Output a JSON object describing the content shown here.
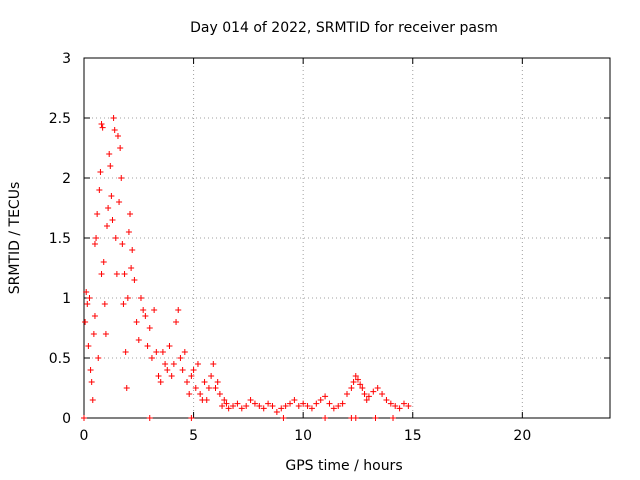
{
  "chart_data": {
    "type": "scatter",
    "title": "Day 014 of 2022, SRMTID for receiver pasm",
    "xlabel": "GPS time / hours",
    "ylabel": "SRMTID / TECUs",
    "xlim": [
      0,
      24
    ],
    "ylim": [
      0,
      3
    ],
    "xticks": [
      0,
      5,
      10,
      15,
      20
    ],
    "yticks": [
      0,
      0.5,
      1,
      1.5,
      2,
      2.5,
      3
    ],
    "xtick_labels": [
      "0",
      "5",
      "10",
      "15",
      "20"
    ],
    "ytick_labels": [
      "0",
      "0.5",
      "1",
      "1.5",
      "2",
      "2.5",
      "3"
    ],
    "grid": true,
    "marker": "plus",
    "color": "#ff0000",
    "series": [
      {
        "name": "SRMTID",
        "points": [
          [
            0.05,
            0.8
          ],
          [
            0.1,
            1.05
          ],
          [
            0.15,
            0.95
          ],
          [
            0.2,
            0.6
          ],
          [
            0.25,
            1.0
          ],
          [
            0.3,
            0.4
          ],
          [
            0.35,
            0.3
          ],
          [
            0.4,
            0.15
          ],
          [
            0.45,
            0.7
          ],
          [
            0.5,
            0.85
          ],
          [
            0.5,
            1.45
          ],
          [
            0.55,
            1.5
          ],
          [
            0.6,
            1.7
          ],
          [
            0.65,
            0.5
          ],
          [
            0.7,
            1.9
          ],
          [
            0.75,
            2.05
          ],
          [
            0.8,
            1.2
          ],
          [
            0.8,
            2.45
          ],
          [
            0.85,
            2.42
          ],
          [
            0.9,
            1.3
          ],
          [
            0.95,
            0.95
          ],
          [
            1.0,
            0.7
          ],
          [
            1.05,
            1.6
          ],
          [
            1.1,
            1.75
          ],
          [
            1.15,
            2.2
          ],
          [
            1.2,
            2.1
          ],
          [
            1.25,
            1.85
          ],
          [
            1.3,
            1.65
          ],
          [
            1.35,
            2.5
          ],
          [
            1.4,
            2.4
          ],
          [
            1.45,
            1.5
          ],
          [
            1.5,
            1.2
          ],
          [
            1.55,
            2.35
          ],
          [
            1.6,
            1.8
          ],
          [
            1.65,
            2.25
          ],
          [
            1.7,
            2.0
          ],
          [
            1.75,
            1.45
          ],
          [
            1.8,
            0.95
          ],
          [
            1.85,
            1.2
          ],
          [
            1.9,
            0.55
          ],
          [
            1.95,
            0.25
          ],
          [
            2.0,
            1.0
          ],
          [
            2.05,
            1.55
          ],
          [
            2.1,
            1.7
          ],
          [
            2.15,
            1.25
          ],
          [
            2.2,
            1.4
          ],
          [
            2.3,
            1.15
          ],
          [
            2.4,
            0.8
          ],
          [
            2.5,
            0.65
          ],
          [
            2.6,
            1.0
          ],
          [
            2.7,
            0.9
          ],
          [
            2.8,
            0.85
          ],
          [
            2.9,
            0.6
          ],
          [
            3.0,
            0.75
          ],
          [
            3.1,
            0.5
          ],
          [
            3.2,
            0.9
          ],
          [
            3.3,
            0.55
          ],
          [
            3.4,
            0.35
          ],
          [
            3.5,
            0.3
          ],
          [
            3.6,
            0.55
          ],
          [
            3.7,
            0.45
          ],
          [
            3.8,
            0.4
          ],
          [
            3.9,
            0.6
          ],
          [
            4.0,
            0.35
          ],
          [
            4.1,
            0.45
          ],
          [
            4.2,
            0.8
          ],
          [
            4.3,
            0.9
          ],
          [
            4.4,
            0.5
          ],
          [
            4.5,
            0.4
          ],
          [
            4.6,
            0.55
          ],
          [
            4.7,
            0.3
          ],
          [
            4.8,
            0.2
          ],
          [
            4.9,
            0.35
          ],
          [
            5.0,
            0.4
          ],
          [
            5.1,
            0.25
          ],
          [
            5.2,
            0.45
          ],
          [
            5.3,
            0.2
          ],
          [
            5.4,
            0.15
          ],
          [
            5.5,
            0.3
          ],
          [
            5.6,
            0.15
          ],
          [
            5.7,
            0.25
          ],
          [
            5.8,
            0.35
          ],
          [
            5.9,
            0.45
          ],
          [
            6.0,
            0.25
          ],
          [
            6.1,
            0.3
          ],
          [
            6.2,
            0.2
          ],
          [
            6.3,
            0.1
          ],
          [
            6.4,
            0.15
          ],
          [
            6.5,
            0.12
          ],
          [
            6.6,
            0.08
          ],
          [
            6.8,
            0.1
          ],
          [
            7.0,
            0.12
          ],
          [
            7.2,
            0.08
          ],
          [
            7.4,
            0.1
          ],
          [
            7.6,
            0.15
          ],
          [
            7.8,
            0.12
          ],
          [
            8.0,
            0.1
          ],
          [
            8.2,
            0.08
          ],
          [
            8.4,
            0.12
          ],
          [
            8.6,
            0.1
          ],
          [
            8.8,
            0.05
          ],
          [
            9.0,
            0.08
          ],
          [
            9.2,
            0.1
          ],
          [
            9.4,
            0.12
          ],
          [
            9.6,
            0.15
          ],
          [
            9.8,
            0.1
          ],
          [
            10.0,
            0.12
          ],
          [
            10.2,
            0.1
          ],
          [
            10.4,
            0.08
          ],
          [
            10.6,
            0.12
          ],
          [
            10.8,
            0.15
          ],
          [
            11.0,
            0.18
          ],
          [
            11.2,
            0.12
          ],
          [
            11.4,
            0.08
          ],
          [
            11.6,
            0.1
          ],
          [
            11.8,
            0.12
          ],
          [
            12.0,
            0.2
          ],
          [
            12.2,
            0.25
          ],
          [
            12.3,
            0.3
          ],
          [
            12.4,
            0.35
          ],
          [
            12.5,
            0.32
          ],
          [
            12.6,
            0.28
          ],
          [
            12.7,
            0.25
          ],
          [
            12.8,
            0.2
          ],
          [
            12.9,
            0.15
          ],
          [
            13.0,
            0.18
          ],
          [
            13.2,
            0.22
          ],
          [
            13.4,
            0.25
          ],
          [
            13.6,
            0.2
          ],
          [
            13.8,
            0.15
          ],
          [
            14.0,
            0.12
          ],
          [
            14.2,
            0.1
          ],
          [
            14.4,
            0.08
          ],
          [
            14.6,
            0.12
          ],
          [
            14.8,
            0.1
          ],
          [
            3.0,
            0.0
          ],
          [
            4.9,
            0.0
          ],
          [
            9.1,
            0.0
          ],
          [
            11.0,
            0.0
          ],
          [
            12.2,
            0.0
          ],
          [
            12.4,
            0.0
          ],
          [
            13.3,
            0.0
          ],
          [
            14.1,
            0.0
          ],
          [
            0.0,
            0.0
          ]
        ]
      }
    ]
  }
}
